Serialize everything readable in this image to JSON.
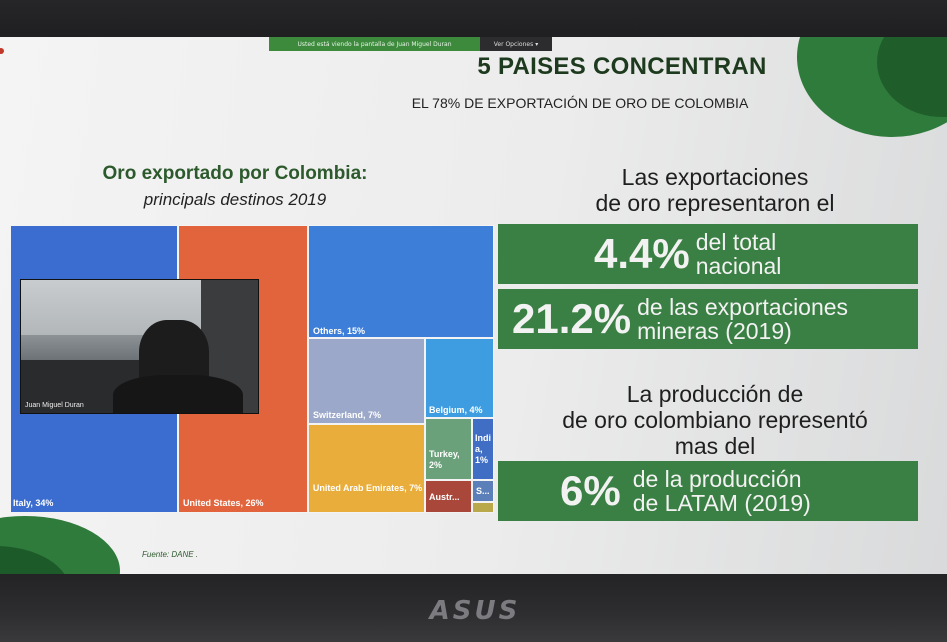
{
  "share_banner": {
    "text": "Usted está viendo la pantalla de Juan Miguel Duran",
    "options_label": "Ver Opciones",
    "options_icon": "chevron-down-icon"
  },
  "slide": {
    "title": "5 PAISES CONCENTRAN",
    "subtitle": "EL 78% DE EXPORTACIÓN DE ORO DE COLOMBIA",
    "chart_title": "Oro exportado por Colombia:",
    "chart_subtitle": "principals destinos 2019",
    "source": "Fuente: DANE ."
  },
  "chart_data": {
    "type": "treemap",
    "title": "Oro exportado por Colombia:",
    "subtitle": "principals destinos 2019",
    "items": [
      {
        "label": "Italy, 34%",
        "country": "Italy",
        "value": 34,
        "color": "#3a6dcf"
      },
      {
        "label": "United States, 26%",
        "country": "United States",
        "value": 26,
        "color": "#e2643c"
      },
      {
        "label": "Others, 15%",
        "country": "Others",
        "value": 15,
        "color": "#3c7ed8"
      },
      {
        "label": "Switzerland, 7%",
        "country": "Switzerland",
        "value": 7,
        "color": "#9ba8c9"
      },
      {
        "label": "United Arab Emirates, 7%",
        "country": "United Arab Emirates",
        "value": 7,
        "color": "#e9ad3b"
      },
      {
        "label": "Belgium, 4%",
        "country": "Belgium",
        "value": 4,
        "color": "#3e9de0"
      },
      {
        "label": "Turkey, 2%",
        "country": "Turkey",
        "value": 2,
        "color": "#6aa07a"
      },
      {
        "label": "India, 1%",
        "country": "India",
        "value": 1,
        "color": "#3f6ec4"
      },
      {
        "label": "Austr...",
        "country": "Austria",
        "value": null,
        "color": "#a9473b"
      },
      {
        "label": "S...",
        "country": "S...",
        "value": null,
        "color": "#5b7fb8"
      },
      {
        "label": "",
        "country": "",
        "value": null,
        "color": "#b9a94a"
      }
    ]
  },
  "video": {
    "participant_name": "Juan Miguel Duran"
  },
  "stats": {
    "intro1_line1": "Las exportaciones",
    "intro1_line2": "de oro representaron el",
    "box1_value": "4.4%",
    "box1_line1": "del total",
    "box1_line2": "nacional",
    "box2_value": "21.2%",
    "box2_line1": "de las exportaciones",
    "box2_line2": "mineras (2019)",
    "intro2_line1": "La producción de",
    "intro2_line2": "de oro colombiano representó",
    "intro2_line3": "mas del",
    "box3_value": "6%",
    "box3_line1": "de la producción",
    "box3_line2": "de LATAM (2019)"
  },
  "laptop": {
    "brand": "ASUS"
  }
}
